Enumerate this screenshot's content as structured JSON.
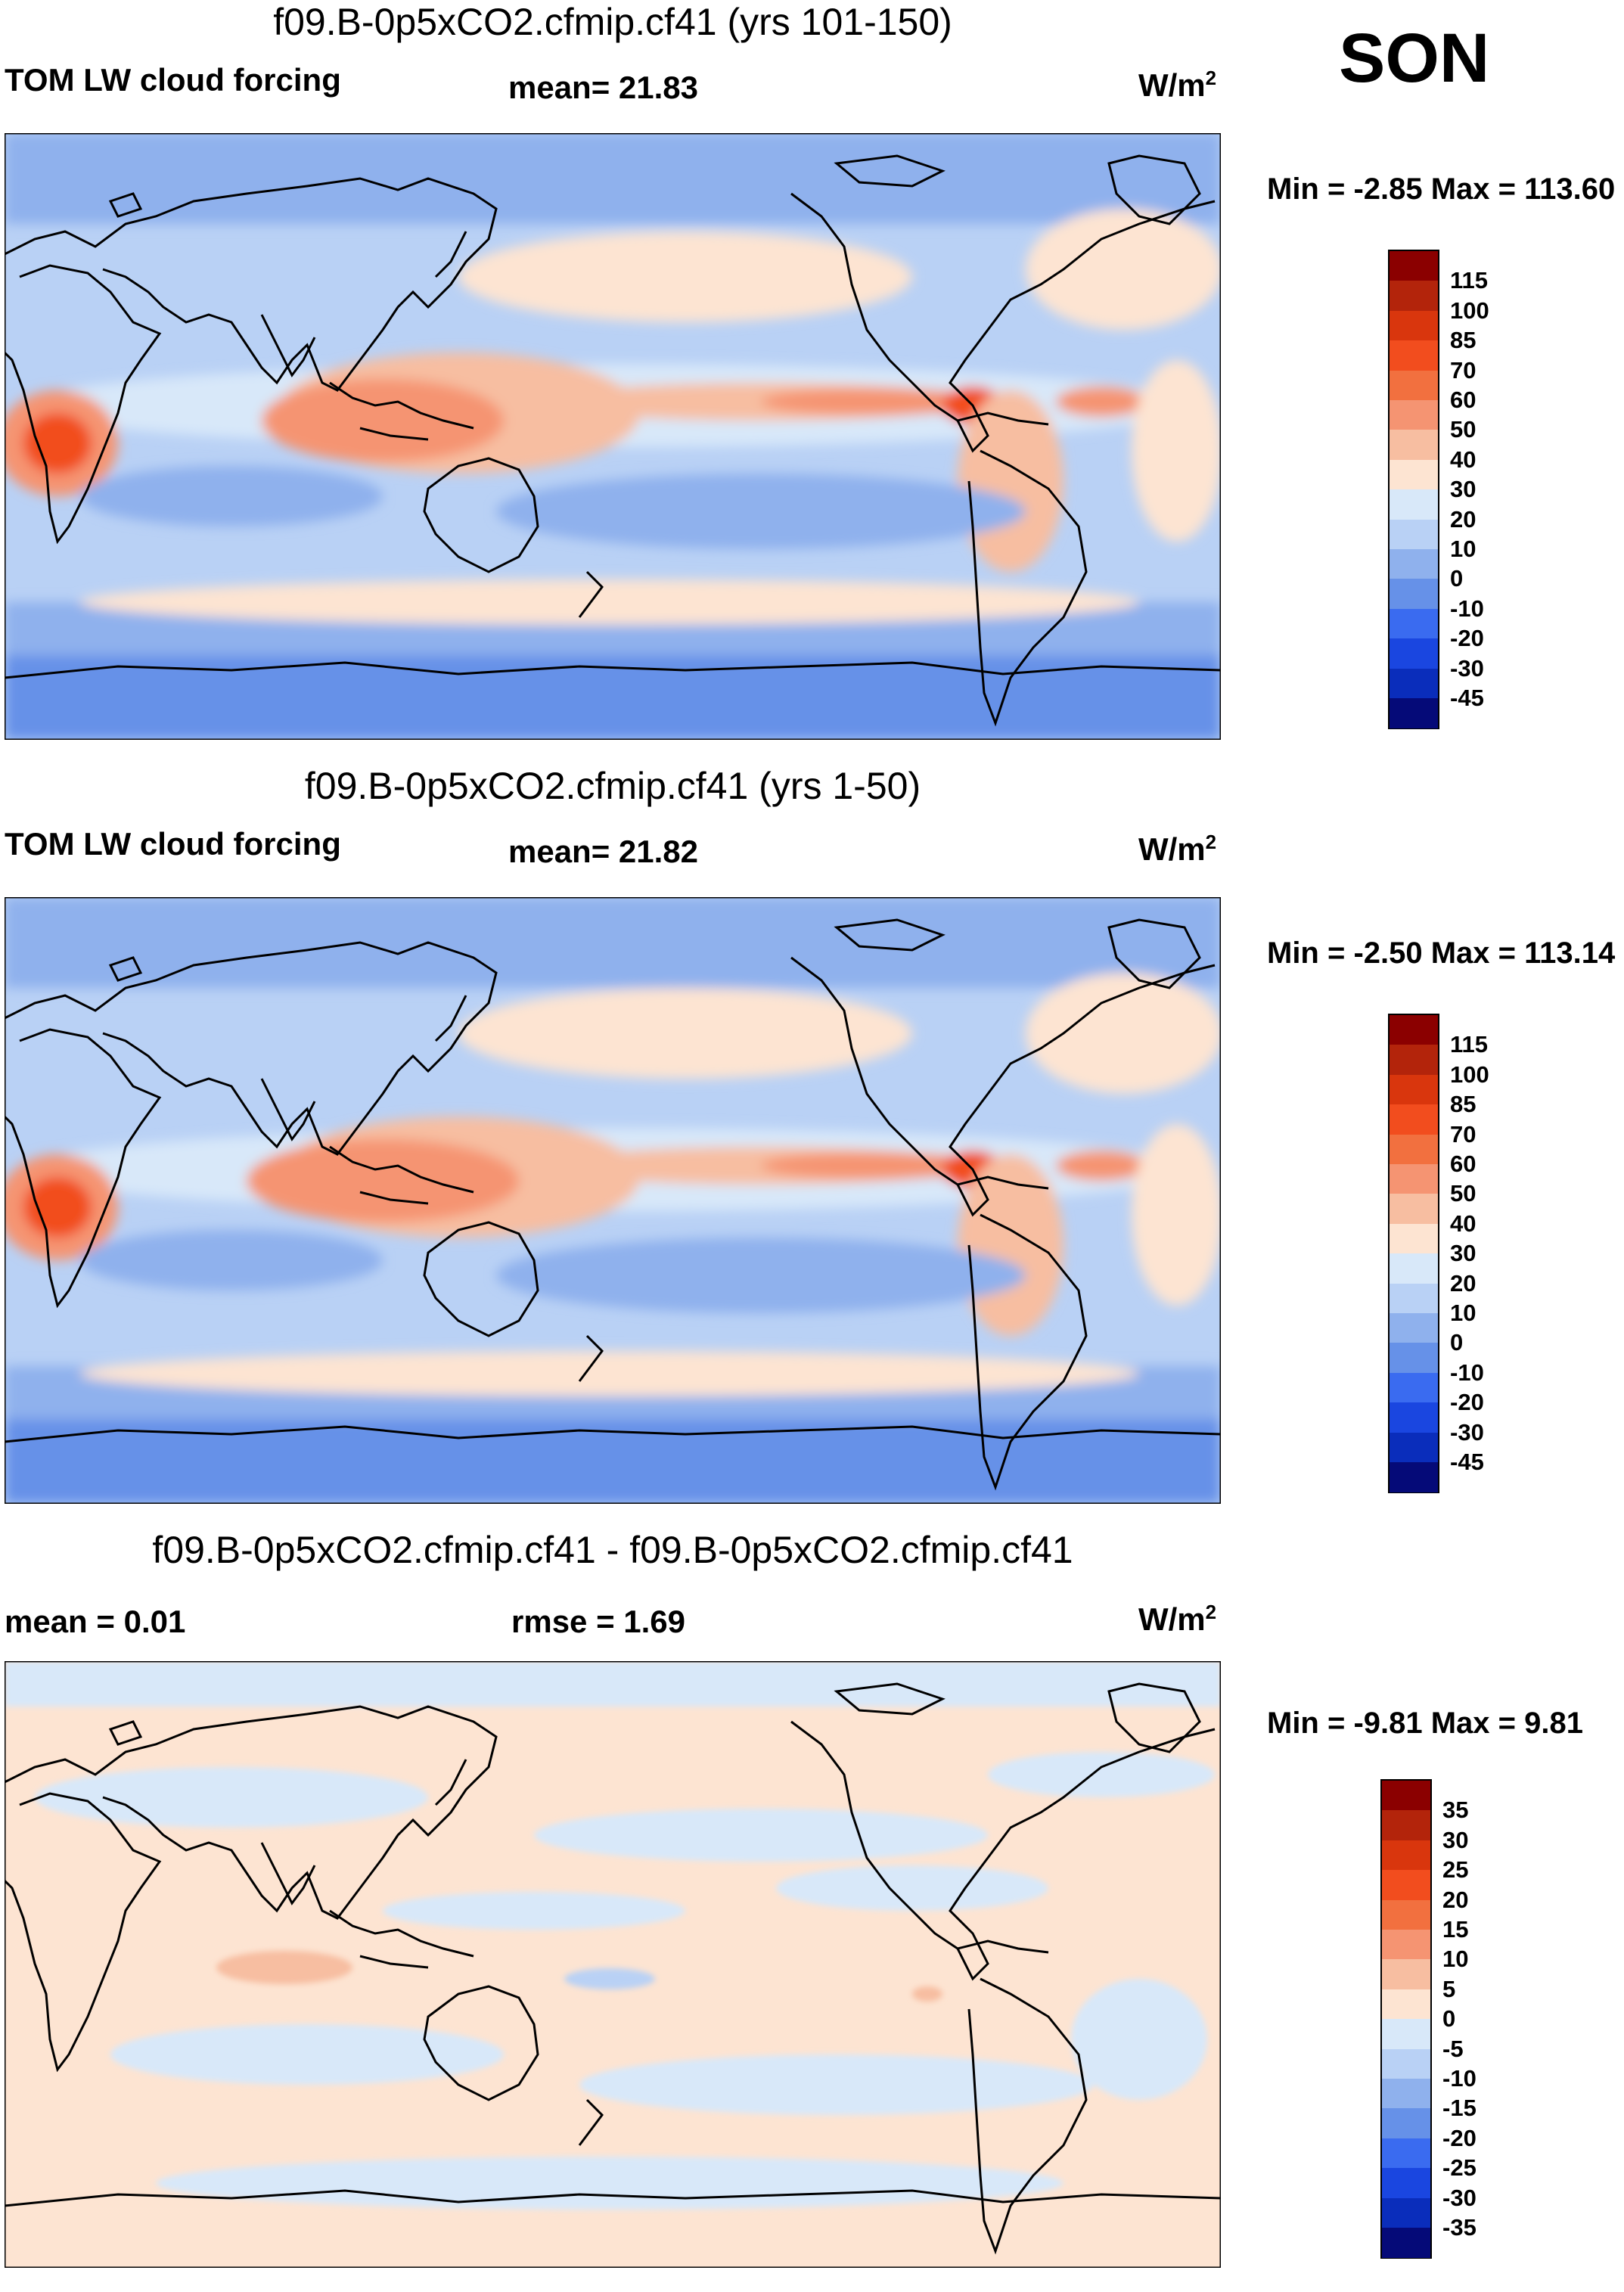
{
  "season": "SON",
  "panels": [
    {
      "title": "f09.B-0p5xCO2.cfmip.cf41 (yrs 101-150)",
      "left_label": "TOM LW cloud forcing",
      "stat1": "mean=  21.83",
      "stat2": "",
      "units": "W/m",
      "units_exp": "2",
      "minmax": "Min =  -2.85 Max = 113.60",
      "colorbar": {
        "ticks": [
          "115",
          "100",
          "85",
          "70",
          "60",
          "50",
          "40",
          "30",
          "20",
          "10",
          "0",
          "-10",
          "-20",
          "-30",
          "-45"
        ],
        "colors": [
          "#8b0000",
          "#b3240b",
          "#d9360d",
          "#f24d1e",
          "#f2703f",
          "#f59472",
          "#f7bea1",
          "#fde4d2",
          "#d8e8f9",
          "#b9d1f5",
          "#8fb1ed",
          "#6691e8",
          "#3a6bf0",
          "#1a46e0",
          "#0a2dbb",
          "#050a78"
        ]
      }
    },
    {
      "title": "f09.B-0p5xCO2.cfmip.cf41 (yrs 1-50)",
      "left_label": "TOM LW cloud forcing",
      "stat1": "mean=  21.82",
      "stat2": "",
      "units": "W/m",
      "units_exp": "2",
      "minmax": "Min =  -2.50 Max = 113.14",
      "colorbar": {
        "ticks": [
          "115",
          "100",
          "85",
          "70",
          "60",
          "50",
          "40",
          "30",
          "20",
          "10",
          "0",
          "-10",
          "-20",
          "-30",
          "-45"
        ],
        "colors": [
          "#8b0000",
          "#b3240b",
          "#d9360d",
          "#f24d1e",
          "#f2703f",
          "#f59472",
          "#f7bea1",
          "#fde4d2",
          "#d8e8f9",
          "#b9d1f5",
          "#8fb1ed",
          "#6691e8",
          "#3a6bf0",
          "#1a46e0",
          "#0a2dbb",
          "#050a78"
        ]
      }
    },
    {
      "title": "f09.B-0p5xCO2.cfmip.cf41 - f09.B-0p5xCO2.cfmip.cf41",
      "left_label": "mean =   0.01",
      "stat1": "rmse =   1.69",
      "stat2": "",
      "units": "W/m",
      "units_exp": "2",
      "minmax": "Min =  -9.81 Max =   9.81",
      "colorbar": {
        "ticks": [
          "35",
          "30",
          "25",
          "20",
          "15",
          "10",
          "5",
          "0",
          "-5",
          "-10",
          "-15",
          "-20",
          "-25",
          "-30",
          "-35"
        ],
        "colors": [
          "#8b0000",
          "#b3240b",
          "#d9360d",
          "#f24d1e",
          "#f2703f",
          "#f59472",
          "#f7bea1",
          "#fde4d2",
          "#d8e8f9",
          "#b9d1f5",
          "#8fb1ed",
          "#6691e8",
          "#3a6bf0",
          "#1a46e0",
          "#0a2dbb",
          "#050a78"
        ]
      }
    }
  ]
}
